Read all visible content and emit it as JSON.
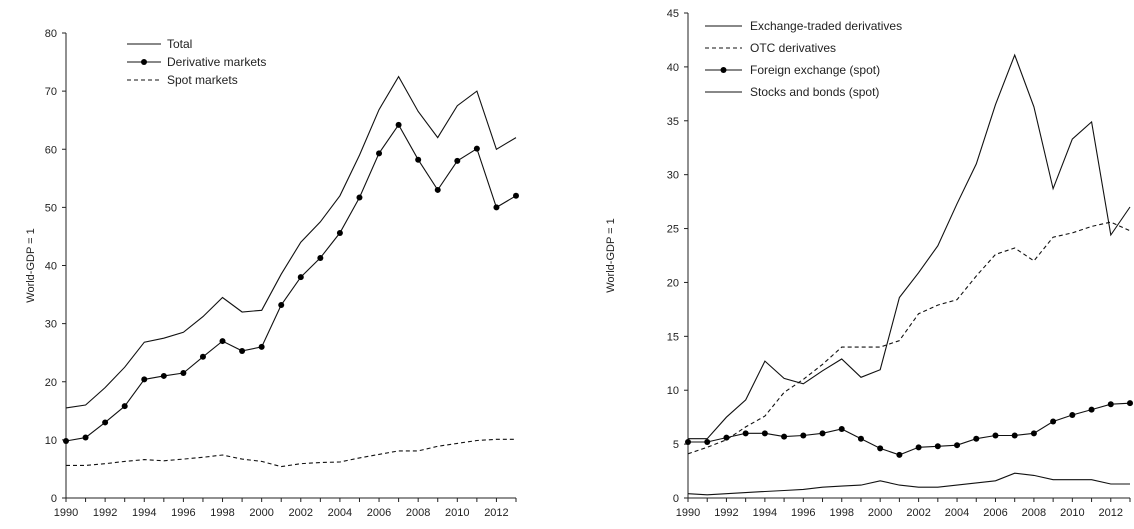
{
  "chart_data": [
    {
      "type": "line",
      "title": "",
      "xlabel": "",
      "ylabel": "World-GDP = 1",
      "ylim": [
        0,
        80
      ],
      "yticks": [
        0,
        10,
        20,
        30,
        40,
        50,
        60,
        70,
        80
      ],
      "xlim": [
        1990,
        2013
      ],
      "xticks": [
        1990,
        1992,
        1994,
        1996,
        1998,
        2000,
        2002,
        2004,
        2006,
        2008,
        2010,
        2012
      ],
      "grid": false,
      "legend_position": "top-left",
      "x": [
        1990,
        1991,
        1992,
        1993,
        1994,
        1995,
        1996,
        1997,
        1998,
        1999,
        2000,
        2001,
        2002,
        2003,
        2004,
        2005,
        2006,
        2007,
        2008,
        2009,
        2010,
        2011,
        2012,
        2013
      ],
      "series": [
        {
          "name": "Total",
          "style": "solid",
          "marker": "none",
          "values": [
            15.5,
            16,
            19,
            22.5,
            26.8,
            27.5,
            28.5,
            31.2,
            34.5,
            32,
            32.3,
            38.5,
            44,
            47.5,
            52,
            59,
            66.8,
            72.5,
            66.5,
            62,
            67.5,
            70,
            60,
            62
          ]
        },
        {
          "name": "Derivative markets",
          "style": "solid",
          "marker": "circle",
          "values": [
            9.8,
            10.4,
            13,
            15.8,
            20.4,
            21,
            21.5,
            24.3,
            27,
            25.3,
            26,
            33.2,
            38,
            41.3,
            45.6,
            51.7,
            59.3,
            64.2,
            58.2,
            53,
            58,
            60.1,
            50,
            52
          ]
        },
        {
          "name": "Spot markets",
          "style": "dashed",
          "marker": "none",
          "values": [
            5.6,
            5.6,
            5.9,
            6.3,
            6.6,
            6.4,
            6.7,
            7,
            7.4,
            6.7,
            6.3,
            5.4,
            5.9,
            6.1,
            6.2,
            6.9,
            7.5,
            8.1,
            8.1,
            8.9,
            9.4,
            9.9,
            10.1,
            10.1
          ]
        }
      ]
    },
    {
      "type": "line",
      "title": "",
      "xlabel": "",
      "ylabel": "World-GDP = 1",
      "ylim": [
        0,
        45
      ],
      "yticks": [
        0,
        5,
        10,
        15,
        20,
        25,
        30,
        35,
        40,
        45
      ],
      "xlim": [
        1990,
        2013
      ],
      "xticks": [
        1990,
        1992,
        1994,
        1996,
        1998,
        2000,
        2002,
        2004,
        2006,
        2008,
        2010,
        2012
      ],
      "grid": false,
      "legend_position": "top-left",
      "x": [
        1990,
        1991,
        1992,
        1993,
        1994,
        1995,
        1996,
        1997,
        1998,
        1999,
        2000,
        2001,
        2002,
        2003,
        2004,
        2005,
        2006,
        2007,
        2008,
        2009,
        2010,
        2011,
        2012,
        2013
      ],
      "series": [
        {
          "name": "Exchange-traded derivatives",
          "style": "solid",
          "marker": "none",
          "values": [
            5.5,
            5.5,
            7.5,
            9.1,
            12.7,
            11.1,
            10.6,
            11.8,
            12.9,
            11.2,
            11.9,
            18.6,
            20.9,
            23.4,
            27.3,
            31,
            36.5,
            41.1,
            36.3,
            28.7,
            33.3,
            34.9,
            24.4,
            27
          ]
        },
        {
          "name": "OTC derivatives",
          "style": "dashed",
          "marker": "none",
          "values": [
            4.1,
            4.7,
            5.4,
            6.6,
            7.6,
            9.8,
            11,
            12.4,
            14,
            14,
            14,
            14.6,
            17.1,
            17.9,
            18.4,
            20.6,
            22.6,
            23.2,
            22,
            24.2,
            24.6,
            25.2,
            25.6,
            24.8
          ]
        },
        {
          "name": "Foreign exchange (spot)",
          "style": "solid",
          "marker": "circle",
          "values": [
            5.2,
            5.2,
            5.6,
            6,
            6,
            5.7,
            5.8,
            6,
            6.4,
            5.5,
            4.6,
            4,
            4.7,
            4.8,
            4.9,
            5.5,
            5.8,
            5.8,
            6,
            7.1,
            7.7,
            8.2,
            8.7,
            8.8
          ]
        },
        {
          "name": "Stocks and bonds (spot)",
          "style": "solid",
          "marker": "none",
          "values": [
            0.4,
            0.3,
            0.4,
            0.5,
            0.6,
            0.7,
            0.8,
            1,
            1.1,
            1.2,
            1.6,
            1.2,
            1,
            1,
            1.2,
            1.4,
            1.6,
            2.3,
            2.1,
            1.7,
            1.7,
            1.7,
            1.3,
            1.3
          ]
        }
      ]
    }
  ]
}
